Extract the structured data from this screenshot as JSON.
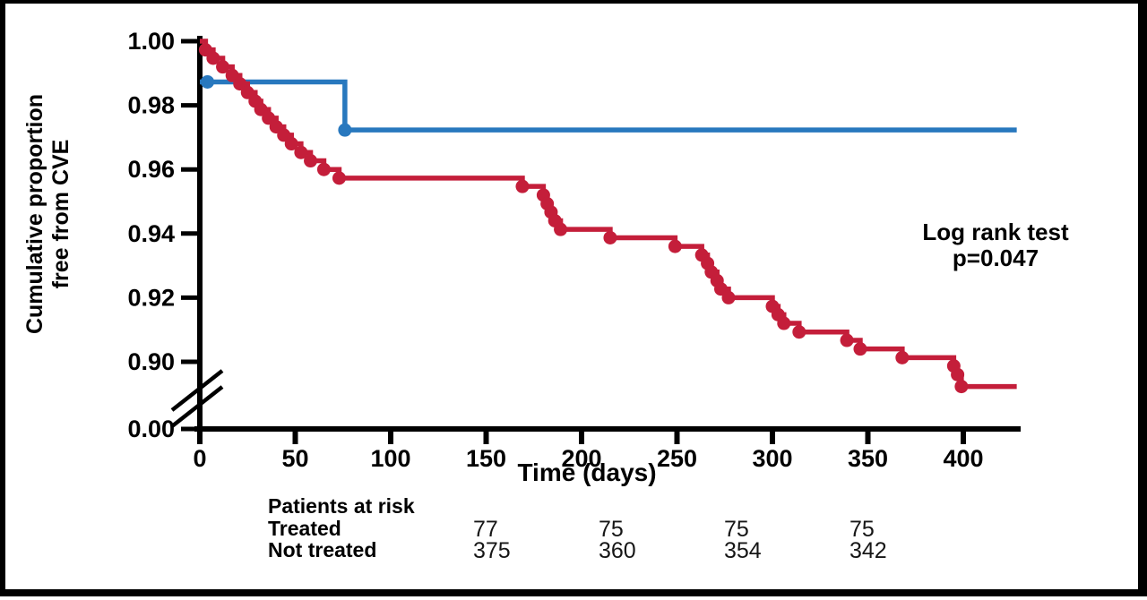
{
  "colors": {
    "treated_blue": "#2878be",
    "not_treated_red": "#c41e3a",
    "axis_black": "#000000",
    "background": "#ffffff"
  },
  "chart_data": {
    "type": "line",
    "subtype": "kaplan-meier-step-curve",
    "title": "",
    "xlabel": "Time (days)",
    "ylabel_line1": "Cumulative proportion",
    "ylabel_line2": "free from CVE",
    "x_ticks": [
      0,
      50,
      100,
      150,
      200,
      250,
      300,
      350,
      400
    ],
    "y_ticks": [
      "1.00",
      "0.98",
      "0.96",
      "0.94",
      "0.92",
      "0.90",
      "0.00"
    ],
    "y_tick_values": [
      1.0,
      0.98,
      0.96,
      0.94,
      0.92,
      0.9,
      0.0
    ],
    "axis_break": true,
    "xlim": [
      0,
      430
    ],
    "ylim_upper_segment": [
      0.89,
      1.0
    ],
    "legend_position": "none",
    "annotation": {
      "line1": "Log rank test",
      "line2": "p=0.047"
    },
    "series": [
      {
        "name": "Treated",
        "color": "#2878be",
        "start_value": 0.9873,
        "events": [
          [
            76,
            0.9723
          ]
        ],
        "marker_points": [
          [
            4,
            0.9873
          ],
          [
            76,
            0.9723
          ]
        ],
        "end_day": 428
      },
      {
        "name": "Not treated",
        "color": "#c41e3a",
        "start_value": 1.0,
        "events": [
          [
            3,
            0.9973
          ],
          [
            7,
            0.9947
          ],
          [
            12,
            0.992
          ],
          [
            17,
            0.9893
          ],
          [
            21,
            0.9867
          ],
          [
            25,
            0.984
          ],
          [
            29,
            0.9813
          ],
          [
            32,
            0.9787
          ],
          [
            36,
            0.976
          ],
          [
            40,
            0.9733
          ],
          [
            44,
            0.9707
          ],
          [
            48,
            0.968
          ],
          [
            53,
            0.9653
          ],
          [
            58,
            0.9627
          ],
          [
            65,
            0.96
          ],
          [
            73,
            0.9573
          ],
          [
            169,
            0.9547
          ],
          [
            180,
            0.952
          ],
          [
            182,
            0.9493
          ],
          [
            184,
            0.9467
          ],
          [
            186,
            0.944
          ],
          [
            189,
            0.9413
          ],
          [
            215,
            0.9387
          ],
          [
            249,
            0.936
          ],
          [
            263,
            0.9333
          ],
          [
            266,
            0.9307
          ],
          [
            268,
            0.928
          ],
          [
            271,
            0.9253
          ],
          [
            273,
            0.9227
          ],
          [
            277,
            0.92
          ],
          [
            300,
            0.9173
          ],
          [
            303,
            0.9147
          ],
          [
            306,
            0.912
          ],
          [
            314,
            0.9093
          ],
          [
            339,
            0.9067
          ],
          [
            346,
            0.904
          ],
          [
            368,
            0.9013
          ],
          [
            395,
            0.8987
          ],
          [
            397,
            0.896
          ],
          [
            399,
            0.8923
          ]
        ],
        "end_day": 428
      }
    ]
  },
  "risk_table": {
    "title": "Patients at risk",
    "rows": [
      {
        "label": "Treated",
        "values": [
          "77",
          "75",
          "75",
          "75"
        ]
      },
      {
        "label": "Not treated",
        "values": [
          "375",
          "360",
          "354",
          "342"
        ]
      }
    ]
  }
}
